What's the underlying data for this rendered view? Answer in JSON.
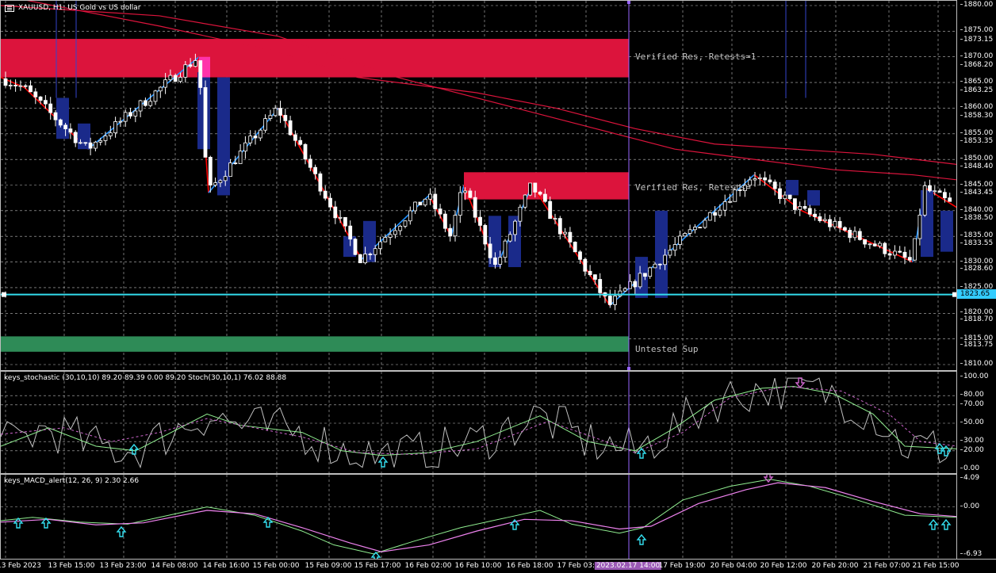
{
  "symbol_title": "XAUUSD, H1: US Gold vs US dollar",
  "zones": {
    "res_top_label": "Verified Res, Retests=1",
    "res_mid_label": "Verified Res, Retests=",
    "sup_label": "Untested Sup"
  },
  "price_axis": {
    "labels": [
      "1880.00",
      "1875.00",
      "1873.15",
      "1870.00",
      "1868.20",
      "1865.00",
      "1863.25",
      "1860.00",
      "1858.30",
      "1855.00",
      "1853.35",
      "1850.00",
      "1848.40",
      "1845.00",
      "1843.45",
      "1840.00",
      "1838.50",
      "1835.00",
      "1833.55",
      "1830.00",
      "1828.60",
      "1825.00",
      "1823.65",
      "1820.00",
      "1818.70",
      "1815.00",
      "1813.75",
      "1810.00"
    ],
    "current_price": "1823.65",
    "current_price_badge": "1825.00",
    "ymin": 1810,
    "ymax": 1880
  },
  "stoch": {
    "title": "keys_stochastic (30,10,10) 89.20 89.39 0.00 89.20 Stoch(30,10,1) 76.02 88.88",
    "levels": [
      "100.00",
      "80.00",
      "70.00",
      "50.00",
      "30.00",
      "20.00",
      "0.00"
    ]
  },
  "macd": {
    "title": "keys_MACD_alert(12, 26, 9) 2.30 2.66",
    "levels": [
      "4.09",
      "0.00",
      "-6.93"
    ]
  },
  "time_axis": {
    "labels": [
      "13 Feb 2023",
      "13 Feb 15:00",
      "13 Feb 23:00",
      "14 Feb 08:00",
      "14 Feb 16:00",
      "15 Feb 00:00",
      "15 Feb 09:00",
      "15 Feb 17:00",
      "16 Feb 02:00",
      "16 Feb 10:00",
      "16 Feb 18:00",
      "17 Feb 03:00",
      "2023.02.17 14:00",
      "17 Feb 19:00",
      "20 Feb 04:00",
      "20 Feb 12:00",
      "20 Feb 20:00",
      "21 Feb 07:00",
      "21 Feb 15:00"
    ],
    "selected_index": 12
  },
  "colors": {
    "bull": "#ffffff",
    "bear": "#ffffff",
    "resistance": "#dc143c",
    "support": "#2e8b57",
    "zigzag_up": "#1e90ff",
    "zigzag_down": "#ff0000",
    "ma": "#dc143c",
    "cursor": "#9966ff",
    "hline": "#33ddee",
    "stoch_main": "#c0c0c0",
    "stoch_signal": "#90ee90",
    "stoch_dash": "#cc66cc",
    "macd_main": "#90ee90",
    "macd_signal": "#ee82ee",
    "arrow_up": "#33ddee",
    "arrow_down": "#cc66cc"
  }
}
